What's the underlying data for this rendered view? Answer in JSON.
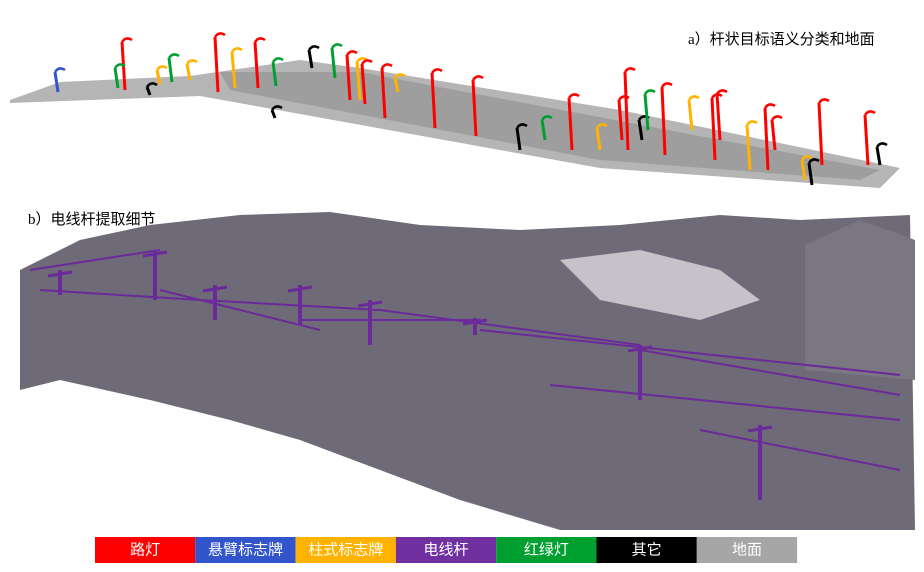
{
  "panels": [
    {
      "caption": "a）杆状目标语义分类和地面"
    },
    {
      "caption": "b）电线杆提取细节"
    }
  ],
  "legend": [
    {
      "label": "路灯",
      "color": "#ff0000"
    },
    {
      "label": "悬臂标志牌",
      "color": "#3355cc"
    },
    {
      "label": "柱式标志牌",
      "color": "#ffb300"
    },
    {
      "label": "电线杆",
      "color": "#7030a0"
    },
    {
      "label": "红绿灯",
      "color": "#00a030"
    },
    {
      "label": "其它",
      "color": "#000000"
    },
    {
      "label": "地面",
      "color": "#a6a6a6"
    }
  ]
}
